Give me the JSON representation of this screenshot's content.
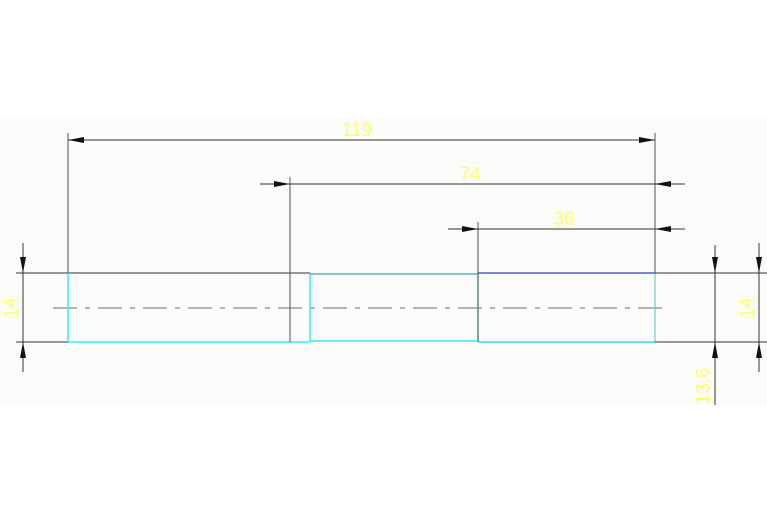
{
  "drawing": {
    "dimensions": {
      "overall_length": "119",
      "mid_length": "74",
      "right_length": "36",
      "left_diameter": "14",
      "right_diameter": "14",
      "right_inner_diameter": "13.6"
    },
    "colors": {
      "background": "#fbfcf9",
      "dimension_text": "#ffff66",
      "outline_cyan": "#33eeee",
      "outline_teal": "#33aaaa",
      "outline_blue": "#3333cc",
      "dimension_line": "#333333",
      "centerline": "#888888"
    }
  }
}
